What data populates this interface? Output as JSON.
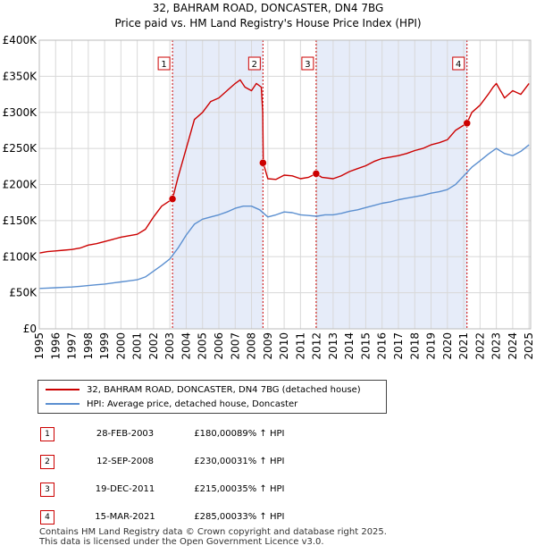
{
  "header": {
    "title": "32, BAHRAM ROAD, DONCASTER, DN4 7BG",
    "subtitle": "Price paid vs. HM Land Registry's House Price Index (HPI)"
  },
  "chart_data": {
    "type": "line",
    "title": "32, BAHRAM ROAD, DONCASTER, DN4 7BG",
    "subtitle": "Price paid vs. HM Land Registry's House Price Index (HPI)",
    "xlim": [
      1995,
      2025.1
    ],
    "ylim": [
      0,
      400000
    ],
    "x_ticks": [
      1995,
      1996,
      1997,
      1998,
      1999,
      2000,
      2001,
      2002,
      2003,
      2004,
      2005,
      2006,
      2007,
      2008,
      2009,
      2010,
      2011,
      2012,
      2013,
      2014,
      2015,
      2016,
      2017,
      2018,
      2019,
      2020,
      2021,
      2022,
      2023,
      2024,
      2025
    ],
    "y_ticks": [
      0,
      50000,
      100000,
      150000,
      200000,
      250000,
      300000,
      350000,
      400000
    ],
    "y_tick_labels": [
      "£0",
      "£50K",
      "£100K",
      "£150K",
      "£200K",
      "£250K",
      "£300K",
      "£350K",
      "£400K"
    ],
    "grid": true,
    "series": [
      {
        "name": "32, BAHRAM ROAD, DONCASTER, DN4 7BG (detached house)",
        "color": "#cc0000",
        "x": [
          1995,
          1995.5,
          1996,
          1996.5,
          1997,
          1997.5,
          1998,
          1998.5,
          1999,
          1999.5,
          2000,
          2000.5,
          2001,
          2001.5,
          2002,
          2002.5,
          2003.16,
          2003.5,
          2004,
          2004.5,
          2005,
          2005.5,
          2006,
          2006.5,
          2007,
          2007.3,
          2007.6,
          2008,
          2008.3,
          2008.6,
          2008.69,
          2008.72,
          2009,
          2009.5,
          2010,
          2010.5,
          2011,
          2011.5,
          2011.96,
          2012.3,
          2013,
          2013.5,
          2014,
          2014.5,
          2015,
          2015.5,
          2016,
          2016.5,
          2017,
          2017.5,
          2018,
          2018.5,
          2019,
          2019.5,
          2020,
          2020.5,
          2021.2,
          2021.5,
          2022,
          2022.5,
          2022.8,
          2023,
          2023.5,
          2024,
          2024.5,
          2025
        ],
        "values": [
          105000,
          107000,
          108000,
          109000,
          110000,
          112000,
          116000,
          118000,
          121000,
          124000,
          127000,
          129000,
          131000,
          138000,
          155000,
          170000,
          180000,
          210000,
          250000,
          290000,
          300000,
          315000,
          320000,
          330000,
          340000,
          345000,
          335000,
          330000,
          340000,
          335000,
          300000,
          230000,
          208000,
          207000,
          213000,
          212000,
          208000,
          210000,
          215000,
          210000,
          208000,
          212000,
          218000,
          222000,
          226000,
          232000,
          236000,
          238000,
          240000,
          243000,
          247000,
          250000,
          255000,
          258000,
          262000,
          275000,
          285000,
          300000,
          310000,
          325000,
          335000,
          340000,
          320000,
          330000,
          325000,
          340000
        ]
      },
      {
        "name": "HPI: Average price, detached house, Doncaster",
        "color": "#5b8fd0",
        "x": [
          1995,
          1995.5,
          1996,
          1996.5,
          1997,
          1997.5,
          1998,
          1998.5,
          1999,
          1999.5,
          2000,
          2000.5,
          2001,
          2001.5,
          2002,
          2002.5,
          2003,
          2003.5,
          2004,
          2004.5,
          2005,
          2005.5,
          2006,
          2006.5,
          2007,
          2007.5,
          2008,
          2008.5,
          2009,
          2009.5,
          2010,
          2010.5,
          2011,
          2011.5,
          2012,
          2012.5,
          2013,
          2013.5,
          2014,
          2014.5,
          2015,
          2015.5,
          2016,
          2016.5,
          2017,
          2017.5,
          2018,
          2018.5,
          2019,
          2019.5,
          2020,
          2020.5,
          2021,
          2021.5,
          2022,
          2022.5,
          2023,
          2023.5,
          2024,
          2024.5,
          2025
        ],
        "values": [
          56000,
          56500,
          57000,
          57500,
          58000,
          59000,
          60000,
          61000,
          62000,
          63500,
          65000,
          66500,
          68000,
          72000,
          80000,
          88000,
          97000,
          112000,
          130000,
          145000,
          152000,
          155000,
          158000,
          162000,
          167000,
          170000,
          170000,
          165000,
          155000,
          158000,
          162000,
          161000,
          158000,
          157000,
          156000,
          158000,
          158000,
          160000,
          163000,
          165000,
          168000,
          171000,
          174000,
          176000,
          179000,
          181000,
          183000,
          185000,
          188000,
          190000,
          193000,
          200000,
          212000,
          224000,
          233000,
          242000,
          250000,
          243000,
          240000,
          246000,
          255000
        ]
      }
    ],
    "markers": [
      {
        "label": "1",
        "x": 2003.16,
        "y": 180000
      },
      {
        "label": "2",
        "x": 2008.7,
        "y": 230000
      },
      {
        "label": "3",
        "x": 2011.96,
        "y": 215000
      },
      {
        "label": "4",
        "x": 2021.2,
        "y": 285000
      }
    ],
    "shaded_ranges": [
      [
        2003.16,
        2008.7
      ],
      [
        2011.96,
        2021.2
      ]
    ]
  },
  "legend": {
    "red_label": "32, BAHRAM ROAD, DONCASTER, DN4 7BG (detached house)",
    "blue_label": "HPI: Average price, detached house, Doncaster"
  },
  "sales": [
    {
      "num": "1",
      "date": "28-FEB-2003",
      "price": "£180,000",
      "hpi": "89% ↑ HPI"
    },
    {
      "num": "2",
      "date": "12-SEP-2008",
      "price": "£230,000",
      "hpi": "31% ↑ HPI"
    },
    {
      "num": "3",
      "date": "19-DEC-2011",
      "price": "£215,000",
      "hpi": "35% ↑ HPI"
    },
    {
      "num": "4",
      "date": "15-MAR-2021",
      "price": "£285,000",
      "hpi": "33% ↑ HPI"
    }
  ],
  "footer": {
    "line1": "Contains HM Land Registry data © Crown copyright and database right 2025.",
    "line2": "This data is licensed under the Open Government Licence v3.0."
  },
  "colors": {
    "accent_red": "#cc0000",
    "hpi_blue": "#5b8fd0",
    "shade": "#dde6f7"
  }
}
